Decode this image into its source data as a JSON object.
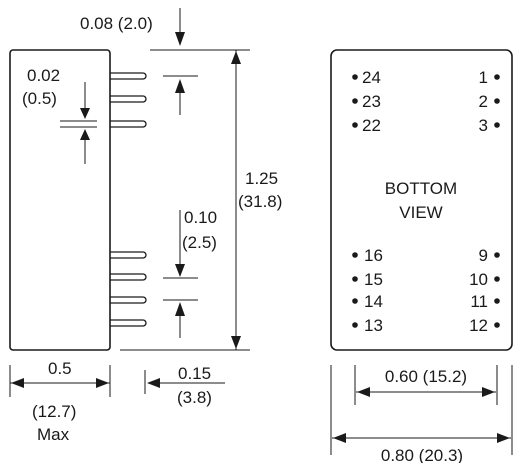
{
  "side_view": {
    "pin_offset_label": "0.08 (2.0)",
    "pin_width_in": "0.02",
    "pin_width_mm": "(0.5)",
    "pin_pitch_in": "0.10",
    "pin_pitch_mm": "(2.5)",
    "height_in": "1.25",
    "height_mm": "(31.8)",
    "width_in": "0.5",
    "width_mm": "(12.7)",
    "width_note": "Max",
    "pin_len_in": "0.15",
    "pin_len_mm": "(3.8)"
  },
  "bottom_view": {
    "title_line1": "BOTTOM",
    "title_line2": "VIEW",
    "left_pins_top": [
      "24",
      "23",
      "22"
    ],
    "left_pins_bottom": [
      "16",
      "15",
      "14",
      "13"
    ],
    "right_pins_top": [
      "1",
      "2",
      "3"
    ],
    "right_pins_bottom": [
      "9",
      "10",
      "11",
      "12"
    ],
    "pin_spacing_label": "0.60 (15.2)",
    "overall_width_label": "0.80 (20.3)"
  }
}
